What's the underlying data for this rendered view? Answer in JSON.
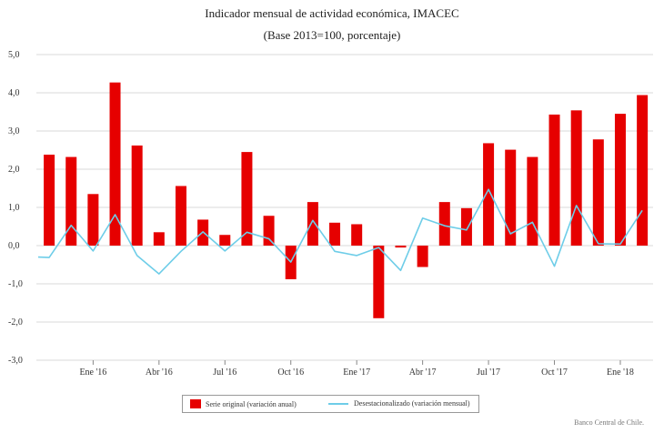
{
  "chart_data": {
    "type": "bar",
    "title": "Indicador mensual de actividad económica, IMACEC",
    "subtitle": "(Base 2013=100, porcentaje)",
    "ylim": [
      -3,
      5
    ],
    "yticks": [
      5,
      4,
      3,
      2,
      1,
      0,
      -1,
      -2,
      -3
    ],
    "ytick_labels": [
      "5,0",
      "4,0",
      "3,0",
      "2,0",
      "1,0",
      "0,0",
      "-1,0",
      "-2,0",
      "-3,0"
    ],
    "categories": [
      "Nov '15",
      "Dic '15",
      "Ene '16",
      "Feb '16",
      "Mar '16",
      "Abr '16",
      "May '16",
      "Jun '16",
      "Jul '16",
      "Ago '16",
      "Sep '16",
      "Oct '16",
      "Nov '16",
      "Dic '16",
      "Ene '17",
      "Feb '17",
      "Mar '17",
      "Abr '17",
      "May '17",
      "Jun '17",
      "Jul '17",
      "Ago '17",
      "Sep '17",
      "Oct '17",
      "Nov '17",
      "Dic '17",
      "Ene '18",
      "Feb '18"
    ],
    "xtick_labels": [
      {
        "index": 2,
        "label": "Ene '16"
      },
      {
        "index": 5,
        "label": "Abr '16"
      },
      {
        "index": 8,
        "label": "Jul '16"
      },
      {
        "index": 11,
        "label": "Oct '16"
      },
      {
        "index": 14,
        "label": "Ene '17"
      },
      {
        "index": 17,
        "label": "Abr '17"
      },
      {
        "index": 20,
        "label": "Jul '17"
      },
      {
        "index": 23,
        "label": "Oct '17"
      },
      {
        "index": 26,
        "label": "Ene '18"
      }
    ],
    "series": [
      {
        "name": "Serie original (variación anual)",
        "kind": "bar",
        "color": "#e60000",
        "values": [
          2.38,
          2.32,
          1.35,
          4.27,
          2.62,
          0.35,
          1.56,
          0.68,
          0.28,
          2.45,
          0.78,
          -0.88,
          1.14,
          0.6,
          0.56,
          -1.9,
          -0.05,
          -0.56,
          1.14,
          0.98,
          2.68,
          2.51,
          2.32,
          3.43,
          3.54,
          2.78,
          3.45,
          3.94
        ]
      },
      {
        "name": "Desestacionalizado (variación mensual)",
        "kind": "line",
        "color": "#6ecde8",
        "start": -0.3,
        "values": [
          -0.31,
          0.53,
          -0.14,
          0.81,
          -0.26,
          -0.74,
          -0.15,
          0.36,
          -0.14,
          0.35,
          0.18,
          -0.43,
          0.66,
          -0.15,
          -0.26,
          -0.05,
          -0.65,
          0.72,
          0.52,
          0.41,
          1.47,
          0.31,
          0.61,
          -0.54,
          1.05,
          0.05,
          0.04,
          0.92
        ]
      }
    ],
    "legend": [
      "Serie original (variación anual)",
      "Desestacionalizado (variación mensual)"
    ],
    "legend_position": "bottom-center"
  },
  "credit": "Banco Central de Chile."
}
